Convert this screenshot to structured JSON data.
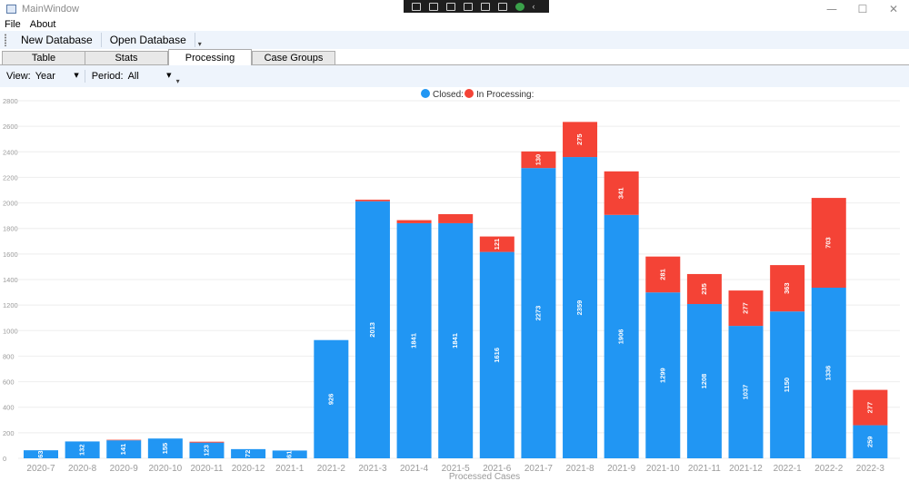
{
  "window": {
    "title": "MainWindow",
    "controls": {
      "minimize": "—",
      "maximize": "☐",
      "close": "✕"
    }
  },
  "menu": {
    "items": [
      "File",
      "About"
    ]
  },
  "toolbar": {
    "new_database": "New Database",
    "open_database": "Open Database"
  },
  "tabs": [
    {
      "label": "Table",
      "active": false
    },
    {
      "label": "Stats",
      "active": false
    },
    {
      "label": "Processing",
      "active": true
    },
    {
      "label": "Case Groups",
      "active": false
    }
  ],
  "filters": {
    "view_label": "View:",
    "view_value": "Year",
    "period_label": "Period:",
    "period_value": "All"
  },
  "chart_data": {
    "type": "bar",
    "stacked": true,
    "xlabel": "Processed Cases",
    "ylabel": "",
    "ylim": [
      0,
      2800
    ],
    "yticks": [
      0,
      200,
      400,
      600,
      800,
      1000,
      1200,
      1400,
      1600,
      1800,
      2000,
      2200,
      2400,
      2600,
      2800
    ],
    "legend_position": "top-center",
    "categories": [
      "2020-7",
      "2020-8",
      "2020-9",
      "2020-10",
      "2020-11",
      "2020-12",
      "2021-1",
      "2021-2",
      "2021-3",
      "2021-4",
      "2021-5",
      "2021-6",
      "2021-7",
      "2021-8",
      "2021-9",
      "2021-10",
      "2021-11",
      "2021-12",
      "2022-1",
      "2022-2",
      "2022-3"
    ],
    "series": [
      {
        "name": "Closed:",
        "color": "#2196F3",
        "values": [
          63,
          132,
          141,
          155,
          123,
          72,
          61,
          926,
          2013,
          1841,
          1841,
          1616,
          2273,
          2359,
          1906,
          1299,
          1208,
          1037,
          1150,
          1336,
          259
        ]
      },
      {
        "name": "In Processing:",
        "color": "#F44336",
        "values": [
          0,
          0,
          4,
          0,
          7,
          0,
          0,
          0,
          12,
          24,
          71,
          121,
          130,
          275,
          341,
          281,
          235,
          277,
          363,
          703,
          277
        ]
      }
    ],
    "data_labels": {
      "Closed:": [
        "63",
        "132",
        "141",
        "155",
        "123",
        "72",
        "61",
        "926",
        "2013",
        "1841",
        "1841",
        "1616",
        "2273",
        "2359",
        "1906",
        "1299",
        "1208",
        "1037",
        "1150",
        "1336",
        "259"
      ],
      "In Processing:": [
        "",
        "",
        "",
        "",
        "",
        "",
        "",
        "",
        "",
        "",
        "",
        "121",
        "130",
        "275",
        "341",
        "281",
        "235",
        "277",
        "363",
        "703",
        "277"
      ]
    }
  }
}
